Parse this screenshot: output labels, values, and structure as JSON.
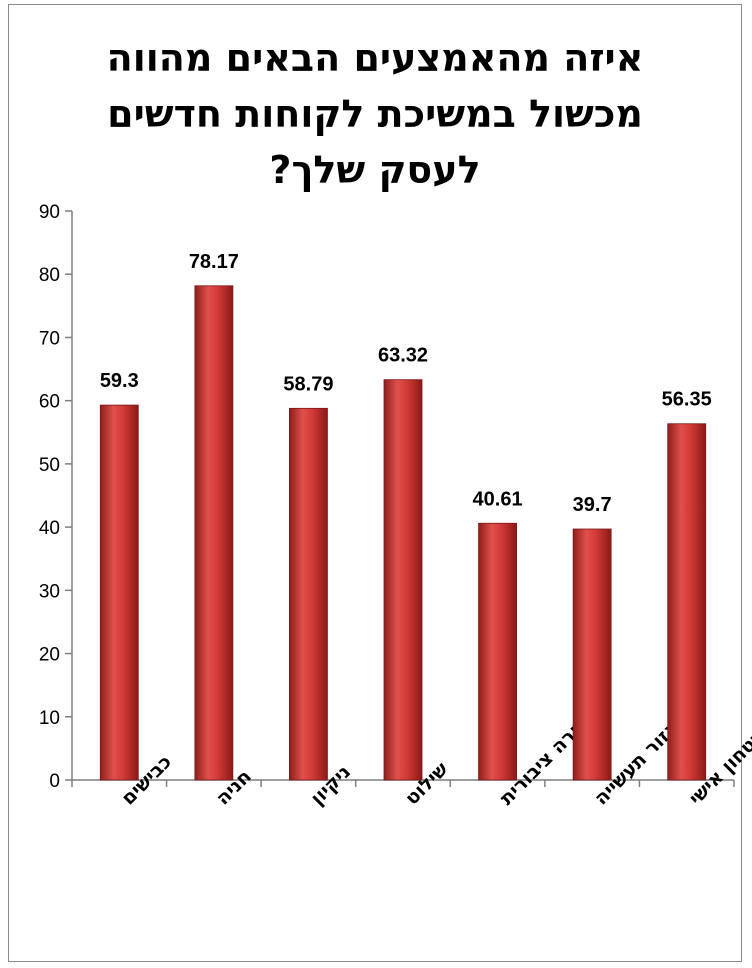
{
  "chart_data": {
    "type": "bar",
    "title_lines": [
      "איזה מהאמצעים הבאים מהווה",
      "מכשול במשיכת לקוחות חדשים",
      "לעסק שלך?"
    ],
    "categories": [
      "כבישים",
      "חניה",
      "ניקיון",
      "שילוט",
      "תחבורה ציבורית",
      "אזור תעשייה",
      "בטחון אישי"
    ],
    "values": [
      59.3,
      78.17,
      58.79,
      63.32,
      40.61,
      39.7,
      56.35
    ],
    "data_labels": [
      "59.3",
      "78.17",
      "58.79",
      "63.32",
      "40.61",
      "39.7",
      "56.35"
    ],
    "ylim": [
      0,
      90
    ],
    "yticks": [
      "0",
      "10",
      "20",
      "30",
      "40",
      "50",
      "60",
      "70",
      "80",
      "90"
    ],
    "grid": false,
    "legend": "none",
    "bar_color": "#c0302e",
    "xlabel": "",
    "ylabel": ""
  }
}
